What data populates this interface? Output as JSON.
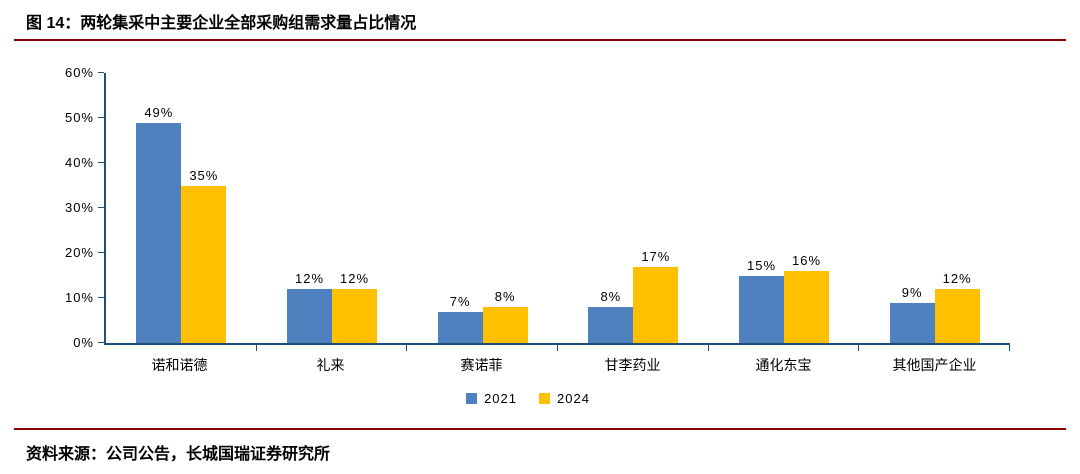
{
  "header": {
    "title": "图 14：两轮集采中主要企业全部采购组需求量占比情况"
  },
  "footer": {
    "source": "资料来源：公司公告，长城国瑞证券研究所"
  },
  "colors": {
    "accent_rule": "#8B0000",
    "axis": "#1F4E79",
    "series_2021": "#4E81BD",
    "series_2024": "#FFC000"
  },
  "chart_data": {
    "type": "bar",
    "title": "图 14：两轮集采中主要企业全部采购组需求量占比情况",
    "categories": [
      "诺和诺德",
      "礼来",
      "赛诺菲",
      "甘李药业",
      "通化东宝",
      "其他国产企业"
    ],
    "series": [
      {
        "name": "2021",
        "color": "#4E81BD",
        "values": [
          49,
          12,
          7,
          8,
          15,
          9
        ]
      },
      {
        "name": "2024",
        "color": "#FFC000",
        "values": [
          35,
          12,
          8,
          17,
          16,
          12
        ]
      }
    ],
    "value_suffix": "%",
    "xlabel": "",
    "ylabel": "",
    "ylim": [
      0,
      60
    ],
    "ytick_step": 10,
    "yticks": [
      "0%",
      "10%",
      "20%",
      "30%",
      "40%",
      "50%",
      "60%"
    ],
    "grid": false,
    "legend_position": "bottom"
  }
}
